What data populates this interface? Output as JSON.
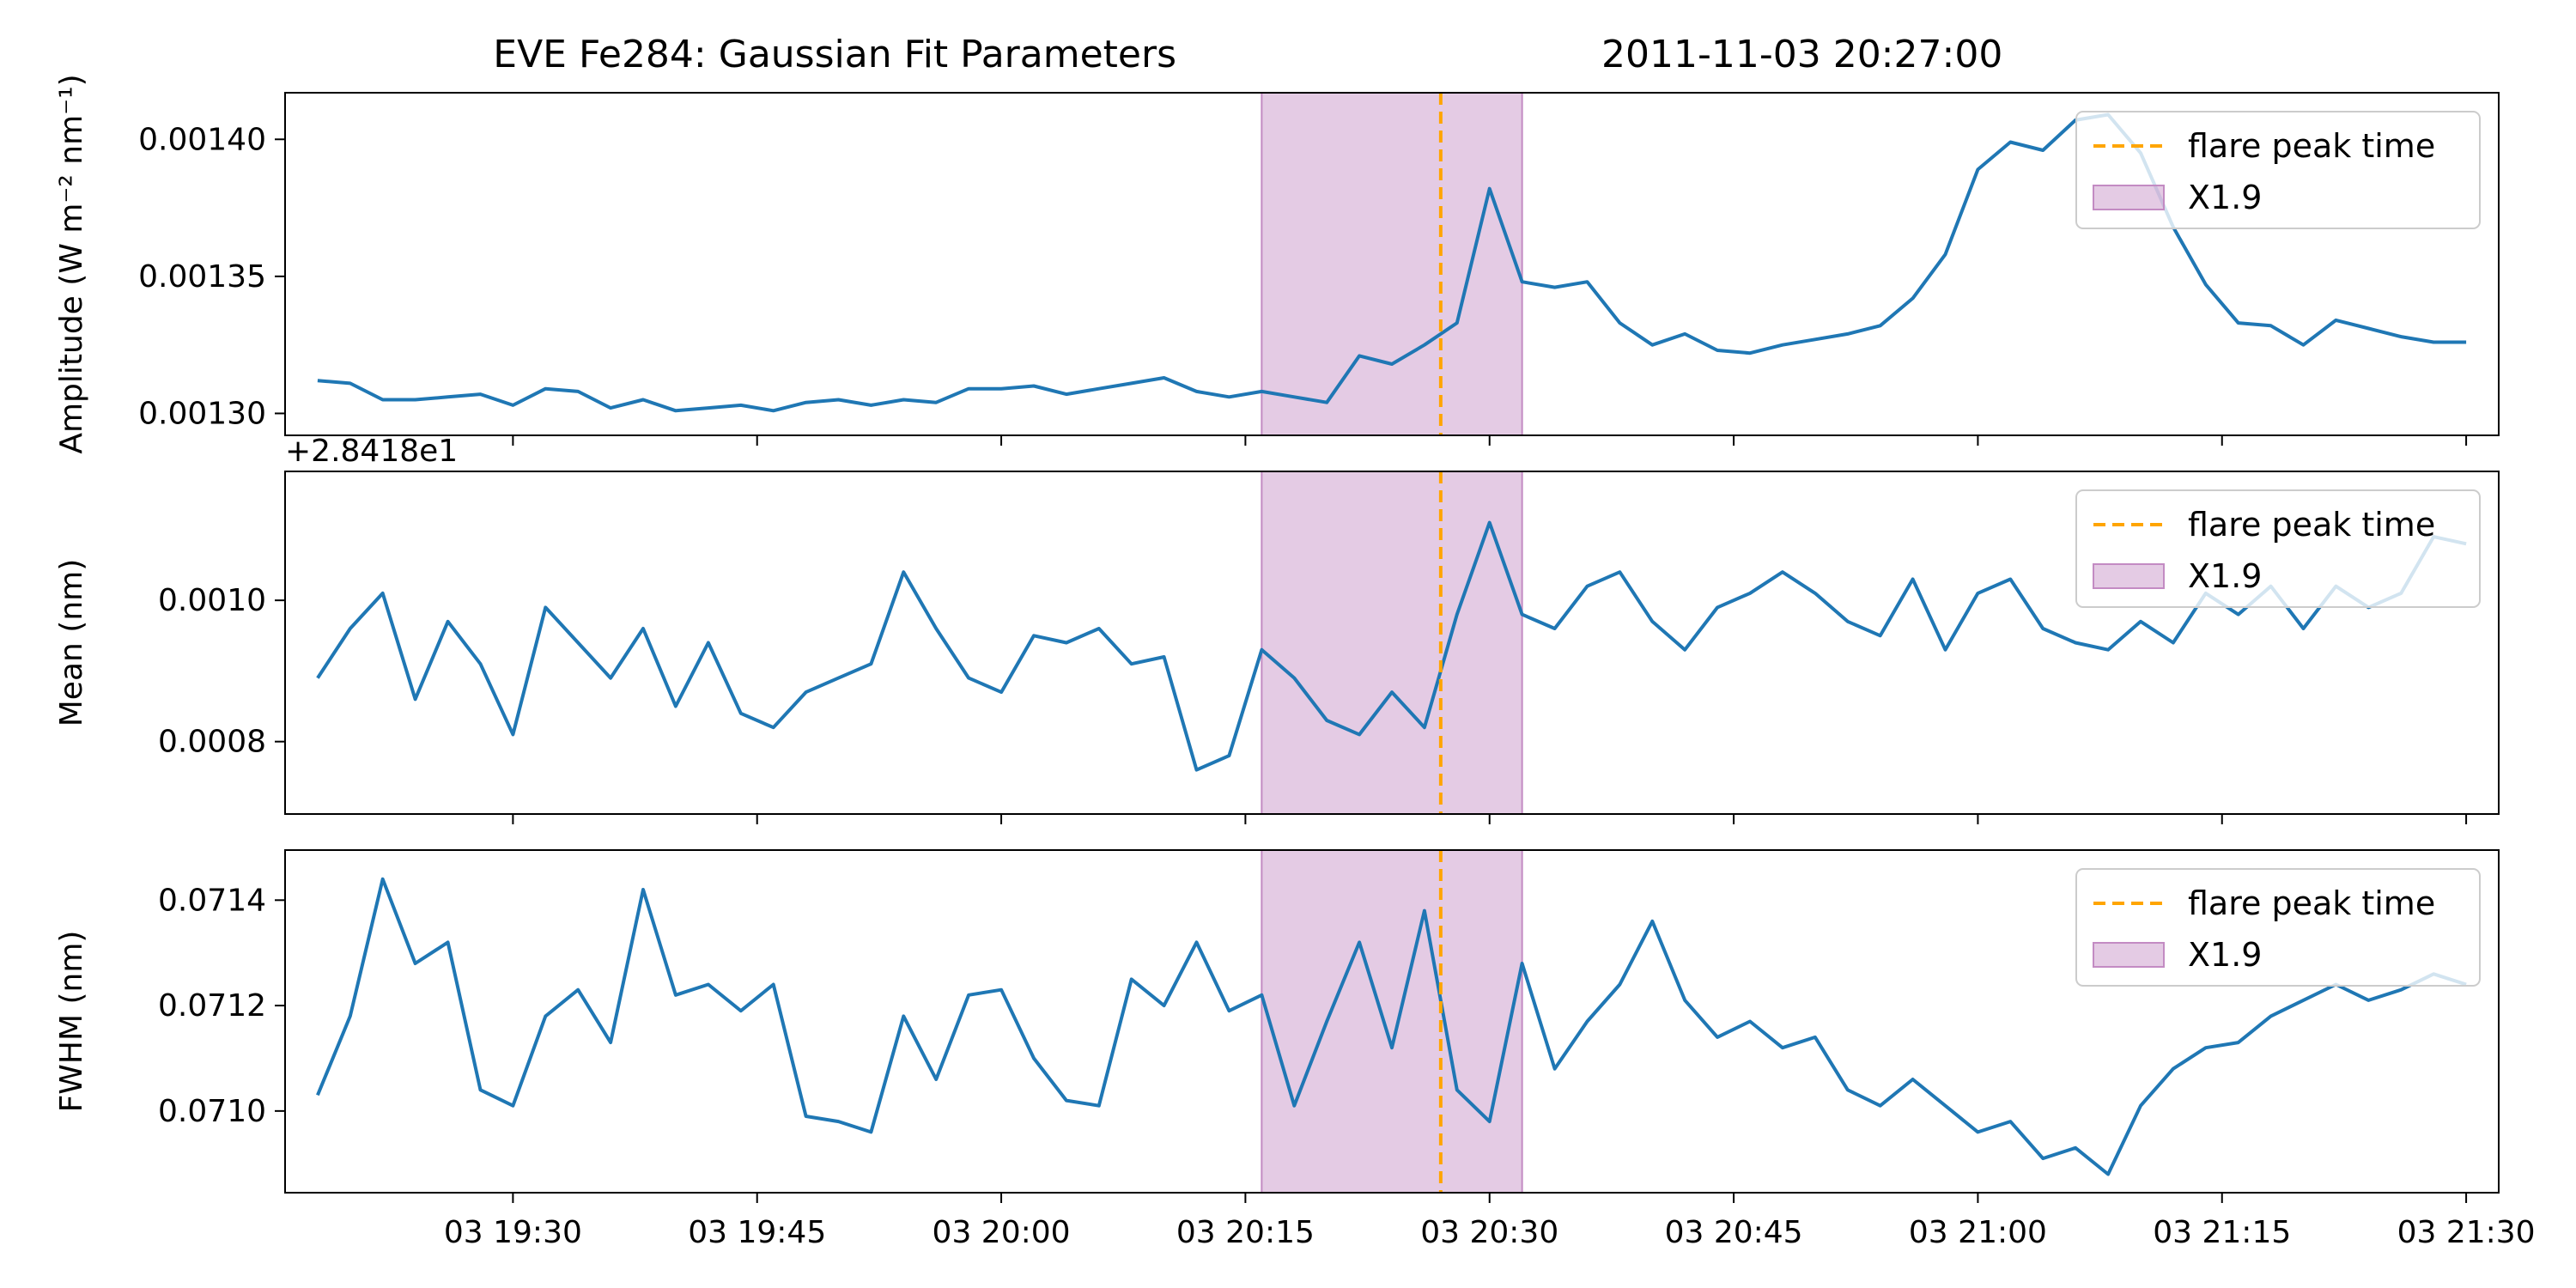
{
  "title": "EVE Fe284: Gaussian Fit Parameters",
  "timestamp": "2011-11-03 20:27:00",
  "colors": {
    "series": "#1f77b4",
    "flare_line": "#ffa500",
    "flare_span": "#c38bc3",
    "axis": "#000000"
  },
  "legend": {
    "flare_peak_label": "flare peak time",
    "span_label": "X1.9",
    "placement": "upper right"
  },
  "chart_data": [
    {
      "type": "line",
      "ylabel": "Amplitude (W m⁻² nm⁻¹)",
      "ylim": [
        0.001292,
        0.001417
      ],
      "yticks": [
        0.0013,
        0.00135,
        0.0014
      ],
      "ytick_labels": [
        "0.00130",
        "0.00135",
        "0.00140"
      ],
      "offset_text": "",
      "x": [
        "19:18",
        "19:20",
        "19:22",
        "19:24",
        "19:26",
        "19:28",
        "19:30",
        "19:32",
        "19:34",
        "19:36",
        "19:38",
        "19:40",
        "19:42",
        "19:44",
        "19:46",
        "19:48",
        "19:50",
        "19:52",
        "19:54",
        "19:56",
        "19:58",
        "20:00",
        "20:02",
        "20:04",
        "20:06",
        "20:08",
        "20:10",
        "20:12",
        "20:14",
        "20:16",
        "20:18",
        "20:20",
        "20:22",
        "20:24",
        "20:26",
        "20:28",
        "20:30",
        "20:32",
        "20:34",
        "20:36",
        "20:38",
        "20:40",
        "20:42",
        "20:44",
        "20:46",
        "20:48",
        "20:50",
        "20:52",
        "20:54",
        "20:56",
        "20:58",
        "21:00",
        "21:02",
        "21:04",
        "21:06",
        "21:08",
        "21:10",
        "21:12",
        "21:14",
        "21:16",
        "21:18",
        "21:20",
        "21:22",
        "21:24",
        "21:26",
        "21:28",
        "21:30"
      ],
      "y": [
        0.001312,
        0.001311,
        0.001305,
        0.001305,
        0.001306,
        0.001307,
        0.001303,
        0.001309,
        0.001308,
        0.001302,
        0.001305,
        0.001301,
        0.001302,
        0.001303,
        0.001301,
        0.001304,
        0.001305,
        0.001303,
        0.001305,
        0.001304,
        0.001309,
        0.001309,
        0.00131,
        0.001307,
        0.001309,
        0.001311,
        0.001313,
        0.001308,
        0.001306,
        0.001308,
        0.001306,
        0.001304,
        0.001321,
        0.001318,
        0.001325,
        0.001333,
        0.001382,
        0.001348,
        0.001346,
        0.001348,
        0.001333,
        0.001325,
        0.001329,
        0.001323,
        0.001322,
        0.001325,
        0.001327,
        0.001329,
        0.001332,
        0.001342,
        0.001358,
        0.001389,
        0.001399,
        0.001396,
        0.001407,
        0.001409,
        0.001395,
        0.001368,
        0.001347,
        0.001333,
        0.001332,
        0.001325,
        0.001334,
        0.001331,
        0.001328,
        0.001326,
        0.001326
      ]
    },
    {
      "type": "line",
      "ylabel": "Mean (nm)",
      "ylim": [
        0.0006975,
        0.0011825
      ],
      "yticks": [
        0.0008,
        0.001
      ],
      "ytick_labels": [
        "0.0008",
        "0.0010"
      ],
      "offset_text": "+2.8418e1",
      "x": [
        "19:18",
        "19:20",
        "19:22",
        "19:24",
        "19:26",
        "19:28",
        "19:30",
        "19:32",
        "19:34",
        "19:36",
        "19:38",
        "19:40",
        "19:42",
        "19:44",
        "19:46",
        "19:48",
        "19:50",
        "19:52",
        "19:54",
        "19:56",
        "19:58",
        "20:00",
        "20:02",
        "20:04",
        "20:06",
        "20:08",
        "20:10",
        "20:12",
        "20:14",
        "20:16",
        "20:18",
        "20:20",
        "20:22",
        "20:24",
        "20:26",
        "20:28",
        "20:30",
        "20:32",
        "20:34",
        "20:36",
        "20:38",
        "20:40",
        "20:42",
        "20:44",
        "20:46",
        "20:48",
        "20:50",
        "20:52",
        "20:54",
        "20:56",
        "20:58",
        "21:00",
        "21:02",
        "21:04",
        "21:06",
        "21:08",
        "21:10",
        "21:12",
        "21:14",
        "21:16",
        "21:18",
        "21:20",
        "21:22",
        "21:24",
        "21:26",
        "21:28",
        "21:30"
      ],
      "y": [
        0.00089,
        0.00096,
        0.00101,
        0.00086,
        0.00097,
        0.00091,
        0.00081,
        0.00099,
        0.00094,
        0.00089,
        0.00096,
        0.00085,
        0.00094,
        0.00084,
        0.00082,
        0.00087,
        0.00089,
        0.00091,
        0.00104,
        0.00096,
        0.00089,
        0.00087,
        0.00095,
        0.00094,
        0.00096,
        0.00091,
        0.00092,
        0.00076,
        0.00078,
        0.00093,
        0.00089,
        0.00083,
        0.00081,
        0.00087,
        0.00082,
        0.00098,
        0.00111,
        0.00098,
        0.00096,
        0.00102,
        0.00104,
        0.00097,
        0.00093,
        0.00099,
        0.00101,
        0.00104,
        0.00101,
        0.00097,
        0.00095,
        0.00103,
        0.00093,
        0.00101,
        0.00103,
        0.00096,
        0.00094,
        0.00093,
        0.00097,
        0.00094,
        0.00101,
        0.00098,
        0.00102,
        0.00096,
        0.00102,
        0.00099,
        0.00101,
        0.00109,
        0.00108
      ]
    },
    {
      "type": "line",
      "ylabel": "FWHM (nm)",
      "ylim": [
        0.070845,
        0.071495
      ],
      "yticks": [
        0.071,
        0.0712,
        0.0714
      ],
      "ytick_labels": [
        "0.0710",
        "0.0712",
        "0.0714"
      ],
      "offset_text": "",
      "x": [
        "19:18",
        "19:20",
        "19:22",
        "19:24",
        "19:26",
        "19:28",
        "19:30",
        "19:32",
        "19:34",
        "19:36",
        "19:38",
        "19:40",
        "19:42",
        "19:44",
        "19:46",
        "19:48",
        "19:50",
        "19:52",
        "19:54",
        "19:56",
        "19:58",
        "20:00",
        "20:02",
        "20:04",
        "20:06",
        "20:08",
        "20:10",
        "20:12",
        "20:14",
        "20:16",
        "20:18",
        "20:20",
        "20:22",
        "20:24",
        "20:26",
        "20:28",
        "20:30",
        "20:32",
        "20:34",
        "20:36",
        "20:38",
        "20:40",
        "20:42",
        "20:44",
        "20:46",
        "20:48",
        "20:50",
        "20:52",
        "20:54",
        "20:56",
        "20:58",
        "21:00",
        "21:02",
        "21:04",
        "21:06",
        "21:08",
        "21:10",
        "21:12",
        "21:14",
        "21:16",
        "21:18",
        "21:20",
        "21:22",
        "21:24",
        "21:26",
        "21:28",
        "21:30"
      ],
      "y": [
        0.07103,
        0.07118,
        0.07144,
        0.07128,
        0.07132,
        0.07104,
        0.07101,
        0.07118,
        0.07123,
        0.07113,
        0.07142,
        0.07122,
        0.07124,
        0.07119,
        0.07124,
        0.07099,
        0.07098,
        0.07096,
        0.07118,
        0.07106,
        0.07122,
        0.07123,
        0.0711,
        0.07102,
        0.07101,
        0.07125,
        0.0712,
        0.07132,
        0.07119,
        0.07122,
        0.07101,
        0.07117,
        0.07132,
        0.07112,
        0.07138,
        0.07104,
        0.07098,
        0.07128,
        0.07108,
        0.07117,
        0.07124,
        0.07136,
        0.07121,
        0.07114,
        0.07117,
        0.07112,
        0.07114,
        0.07104,
        0.07101,
        0.07106,
        0.07101,
        0.07096,
        0.07098,
        0.07091,
        0.07093,
        0.07088,
        0.07101,
        0.07108,
        0.07112,
        0.07113,
        0.07118,
        0.07121,
        0.07124,
        0.07121,
        0.07123,
        0.07126,
        0.07124
      ]
    }
  ],
  "x_axis": {
    "tick_labels": [
      "03 19:30",
      "03 19:45",
      "03 20:00",
      "03 20:15",
      "03 20:30",
      "03 20:45",
      "03 21:00",
      "03 21:15",
      "03 21:30"
    ],
    "tick_times": [
      "19:30",
      "19:45",
      "20:00",
      "20:15",
      "20:30",
      "20:45",
      "21:00",
      "21:15",
      "21:30"
    ],
    "range": [
      "19:16",
      "21:32"
    ]
  },
  "flare": {
    "peak_time": "20:27",
    "span_start": "20:16",
    "span_end": "20:32"
  }
}
